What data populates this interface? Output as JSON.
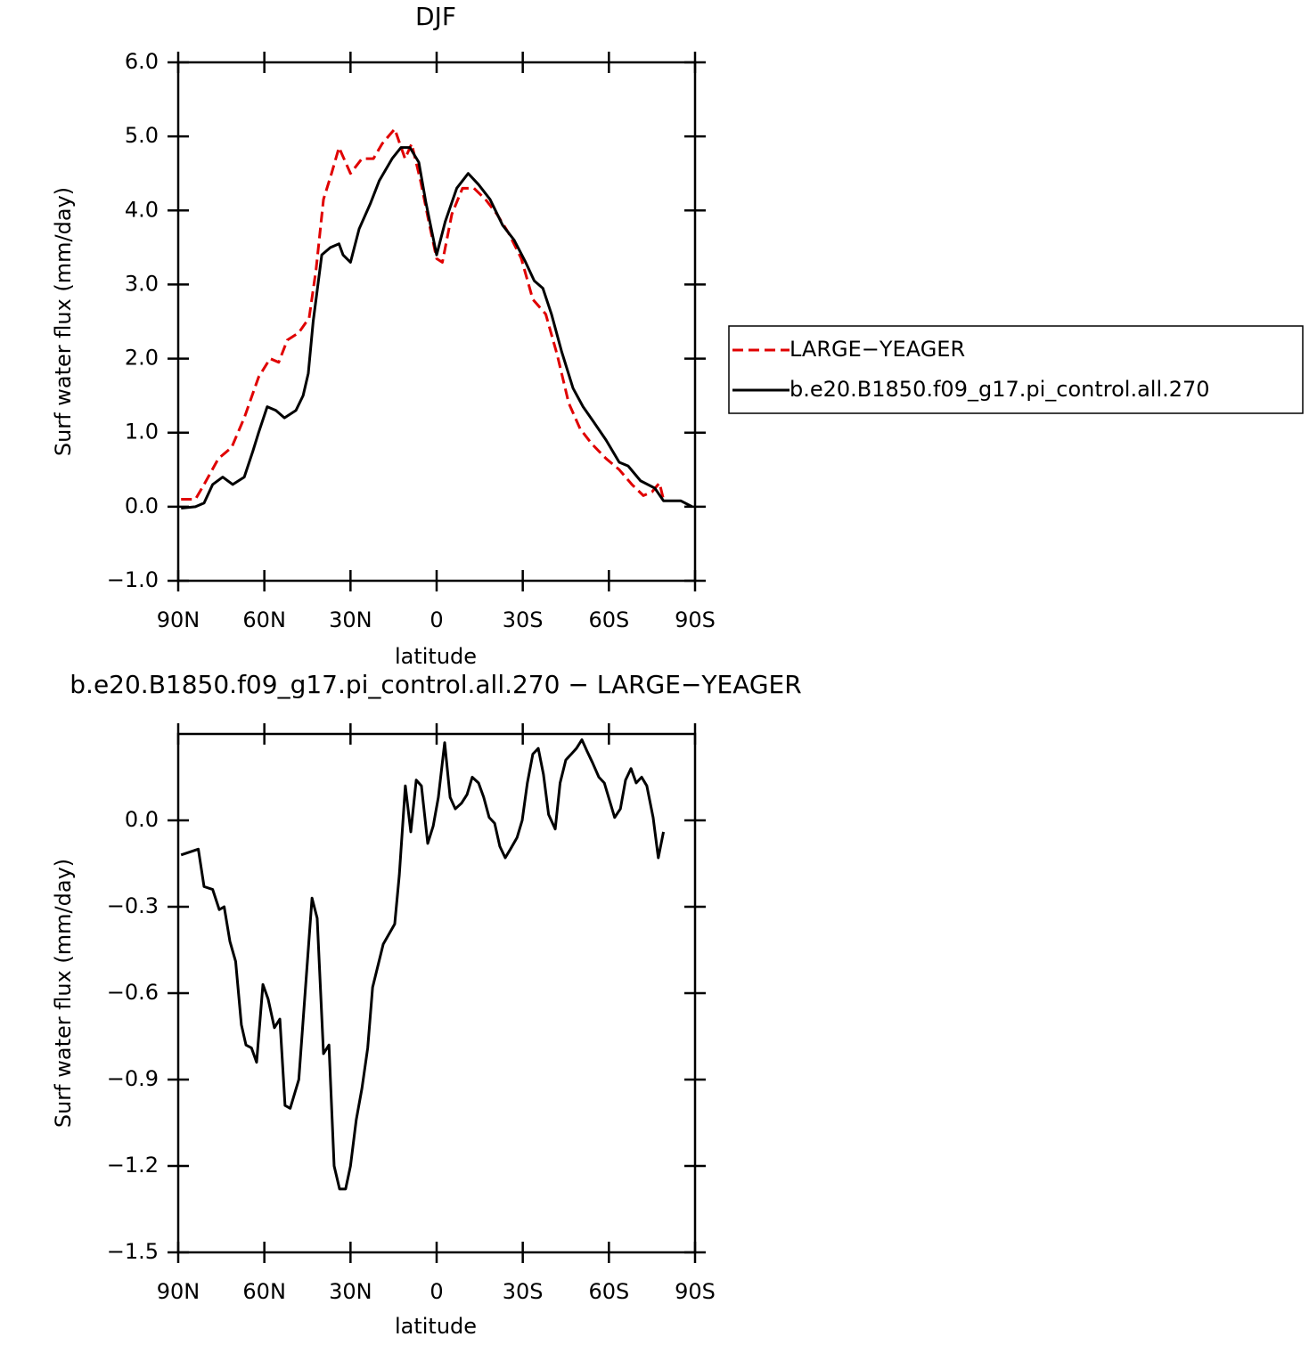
{
  "chart_data": [
    {
      "type": "line",
      "title": "DJF",
      "xlabel": "latitude",
      "ylabel": "Surf water flux (mm/day)",
      "xlim": [
        90,
        -90
      ],
      "xticks": [
        {
          "value": 90,
          "label": "90N"
        },
        {
          "value": 60,
          "label": "60N"
        },
        {
          "value": 30,
          "label": "30N"
        },
        0,
        {
          "value": -30,
          "label": "30S"
        },
        {
          "value": -60,
          "label": "60S"
        },
        {
          "value": -90,
          "label": "90S"
        }
      ],
      "ylim": [
        -1,
        6
      ],
      "yticks": [
        {
          "value": -1,
          "label": "−1.0"
        },
        {
          "value": 0,
          "label": "0.0"
        },
        {
          "value": 1,
          "label": "1.0"
        },
        {
          "value": 2,
          "label": "2.0"
        },
        {
          "value": 3,
          "label": "3.0"
        },
        {
          "value": 4,
          "label": "4.0"
        },
        {
          "value": 5,
          "label": "5.0"
        },
        {
          "value": 6,
          "label": "6.0"
        }
      ],
      "legend": "right",
      "series": [
        {
          "name": "LARGE−YEAGER",
          "color": "#e00000",
          "style": "dashed",
          "x": [
            89,
            84,
            81,
            76,
            71.4,
            67,
            62,
            58,
            55,
            52,
            48,
            44.4,
            42,
            39.4,
            36.6,
            34,
            30,
            26,
            22,
            19,
            14.6,
            11,
            8.7,
            5.6,
            3,
            0,
            -2,
            -5.3,
            -9,
            -13,
            -17,
            -21,
            -25,
            -29.5,
            -33.5,
            -38,
            -42,
            -46,
            -50,
            -54,
            -59,
            -63.6,
            -68,
            -72,
            -75,
            -77.6,
            -79
          ],
          "values": [
            0.1,
            0.1,
            0.3,
            0.65,
            0.8,
            1.2,
            1.75,
            2.0,
            1.95,
            2.25,
            2.35,
            2.55,
            3.2,
            4.15,
            4.5,
            4.85,
            4.5,
            4.7,
            4.7,
            4.9,
            5.1,
            4.7,
            4.9,
            4.4,
            3.9,
            3.35,
            3.3,
            3.95,
            4.3,
            4.3,
            4.15,
            3.95,
            3.7,
            3.35,
            2.8,
            2.6,
            2.05,
            1.4,
            1.05,
            0.85,
            0.65,
            0.5,
            0.3,
            0.15,
            0.2,
            0.32,
            0.1
          ]
        },
        {
          "name": "b.e20.B1850.f09_g17.pi_control.all.270",
          "color": "#000000",
          "style": "solid",
          "x": [
            89,
            84,
            81,
            78,
            74.5,
            71,
            67,
            64,
            62,
            59,
            56,
            53,
            49,
            46.5,
            44.7,
            43,
            40,
            37,
            34,
            32.6,
            30,
            27,
            23,
            20,
            15.5,
            12.4,
            9.3,
            6.2,
            3.7,
            0,
            -3,
            -7,
            -11,
            -14.6,
            -18.6,
            -23,
            -27,
            -31,
            -34,
            -37,
            -40,
            -43.5,
            -47.5,
            -51,
            -54.6,
            -59,
            -63.6,
            -66.7,
            -71,
            -76,
            -79,
            -85,
            -89
          ],
          "values": [
            -0.02,
            0.0,
            0.05,
            0.3,
            0.4,
            0.3,
            0.4,
            0.75,
            1.0,
            1.35,
            1.3,
            1.2,
            1.3,
            1.5,
            1.8,
            2.5,
            3.4,
            3.5,
            3.55,
            3.4,
            3.3,
            3.75,
            4.1,
            4.4,
            4.7,
            4.85,
            4.85,
            4.65,
            4.1,
            3.4,
            3.85,
            4.3,
            4.5,
            4.35,
            4.15,
            3.8,
            3.6,
            3.3,
            3.05,
            2.95,
            2.6,
            2.1,
            1.6,
            1.35,
            1.15,
            0.9,
            0.6,
            0.55,
            0.35,
            0.25,
            0.08,
            0.08,
            0.0
          ]
        }
      ]
    },
    {
      "type": "line",
      "title": "b.e20.B1850.f09_g17.pi_control.all.270 − LARGE−YEAGER",
      "xlabel": "latitude",
      "ylabel": "Surf water flux (mm/day)",
      "xlim": [
        90,
        -90
      ],
      "xticks": [
        {
          "value": 90,
          "label": "90N"
        },
        {
          "value": 60,
          "label": "60N"
        },
        {
          "value": 30,
          "label": "30N"
        },
        0,
        {
          "value": -30,
          "label": "30S"
        },
        {
          "value": -60,
          "label": "60S"
        },
        {
          "value": -90,
          "label": "90S"
        }
      ],
      "ylim": [
        -1.5,
        0.3
      ],
      "yticks": [
        {
          "value": -1.5,
          "label": "−1.5"
        },
        {
          "value": -1.2,
          "label": "−1.2"
        },
        {
          "value": -0.9,
          "label": "−0.9"
        },
        {
          "value": -0.6,
          "label": "−0.6"
        },
        {
          "value": -0.3,
          "label": "−0.3"
        },
        {
          "value": 0,
          "label": "0.0"
        }
      ],
      "series": [
        {
          "color": "#000000",
          "style": "solid",
          "x": [
            89,
            86,
            83,
            81,
            78,
            75.7,
            74,
            72,
            70,
            68,
            66.4,
            64.5,
            62.7,
            60.5,
            58.7,
            56.5,
            54.6,
            52.8,
            51,
            48,
            43.4,
            41.6,
            39.4,
            37.5,
            35.7,
            33.8,
            31.7,
            30,
            28,
            26,
            24,
            22.3,
            18.6,
            14.6,
            13,
            10.9,
            9,
            7.1,
            5.3,
            3.1,
            1.2,
            -0.6,
            -2.8,
            -4.7,
            -6.5,
            -8.7,
            -10.6,
            -12.4,
            -14.6,
            -16.4,
            -18.3,
            -20.2,
            -22,
            -23.9,
            -25.7,
            -28,
            -29.8,
            -31.6,
            -33.5,
            -35.4,
            -37.2,
            -39,
            -41.3,
            -43,
            -45,
            -46.9,
            -48.7,
            -50.6,
            -52.4,
            -54.3,
            -56.5,
            -58.4,
            -60.2,
            -62,
            -64,
            -65.8,
            -67.7,
            -69.5,
            -71.4,
            -73.2,
            -75.4,
            -77.2,
            -79
          ],
          "values": [
            -0.12,
            -0.11,
            -0.1,
            -0.23,
            -0.24,
            -0.31,
            -0.3,
            -0.42,
            -0.49,
            -0.71,
            -0.78,
            -0.79,
            -0.84,
            -0.57,
            -0.62,
            -0.72,
            -0.69,
            -0.99,
            -1.0,
            -0.9,
            -0.27,
            -0.34,
            -0.81,
            -0.78,
            -1.2,
            -1.28,
            -1.28,
            -1.2,
            -1.04,
            -0.93,
            -0.79,
            -0.58,
            -0.43,
            -0.36,
            -0.19,
            0.12,
            -0.04,
            0.14,
            0.12,
            -0.08,
            -0.02,
            0.08,
            0.27,
            0.08,
            0.04,
            0.06,
            0.09,
            0.15,
            0.13,
            0.08,
            0.01,
            -0.01,
            -0.09,
            -0.13,
            -0.1,
            -0.06,
            0.0,
            0.13,
            0.23,
            0.25,
            0.16,
            0.02,
            -0.03,
            0.13,
            0.21,
            0.23,
            0.25,
            0.28,
            0.24,
            0.2,
            0.15,
            0.13,
            0.07,
            0.01,
            0.04,
            0.14,
            0.18,
            0.13,
            0.15,
            0.12,
            0.01,
            -0.13,
            -0.04
          ]
        }
      ]
    }
  ]
}
